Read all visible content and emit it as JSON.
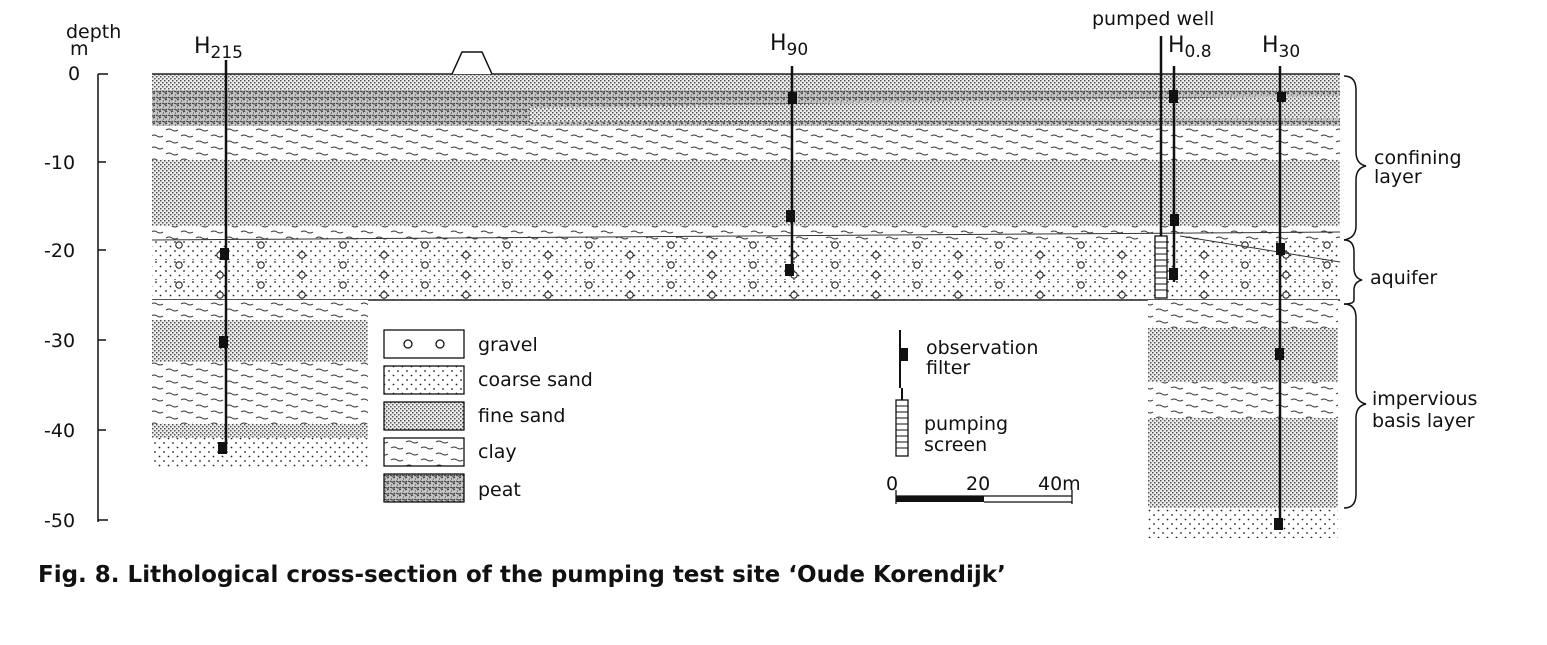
{
  "axis": {
    "title_line1": "depth",
    "title_line2": "m",
    "ticks": [
      "0",
      "-10",
      "-20",
      "-30",
      "-40",
      "-50"
    ]
  },
  "wells": {
    "h215": {
      "main": "H",
      "sub": "215"
    },
    "h90": {
      "main": "H",
      "sub": "90"
    },
    "h08": {
      "main": "H",
      "sub": "0.8"
    },
    "h30": {
      "main": "H",
      "sub": "30"
    },
    "pumped_well": "pumped well"
  },
  "layers": {
    "confining_line1": "confining",
    "confining_line2": "layer",
    "aquifer": "aquifer",
    "impervious_line1": "impervious",
    "impervious_line2": "basis layer"
  },
  "legend": {
    "gravel": "gravel",
    "coarse_sand": "coarse sand",
    "fine_sand": "fine sand",
    "clay": "clay",
    "peat": "peat",
    "observation_line1": "observation",
    "observation_line2": "filter",
    "pumping_line1": "pumping",
    "pumping_line2": "screen"
  },
  "scale_bar": {
    "t0": "0",
    "t20": "20",
    "t40": "40m"
  },
  "caption": "Fig. 8.  Lithological cross-section of the pumping test site ‘Oude Korendijk’"
}
